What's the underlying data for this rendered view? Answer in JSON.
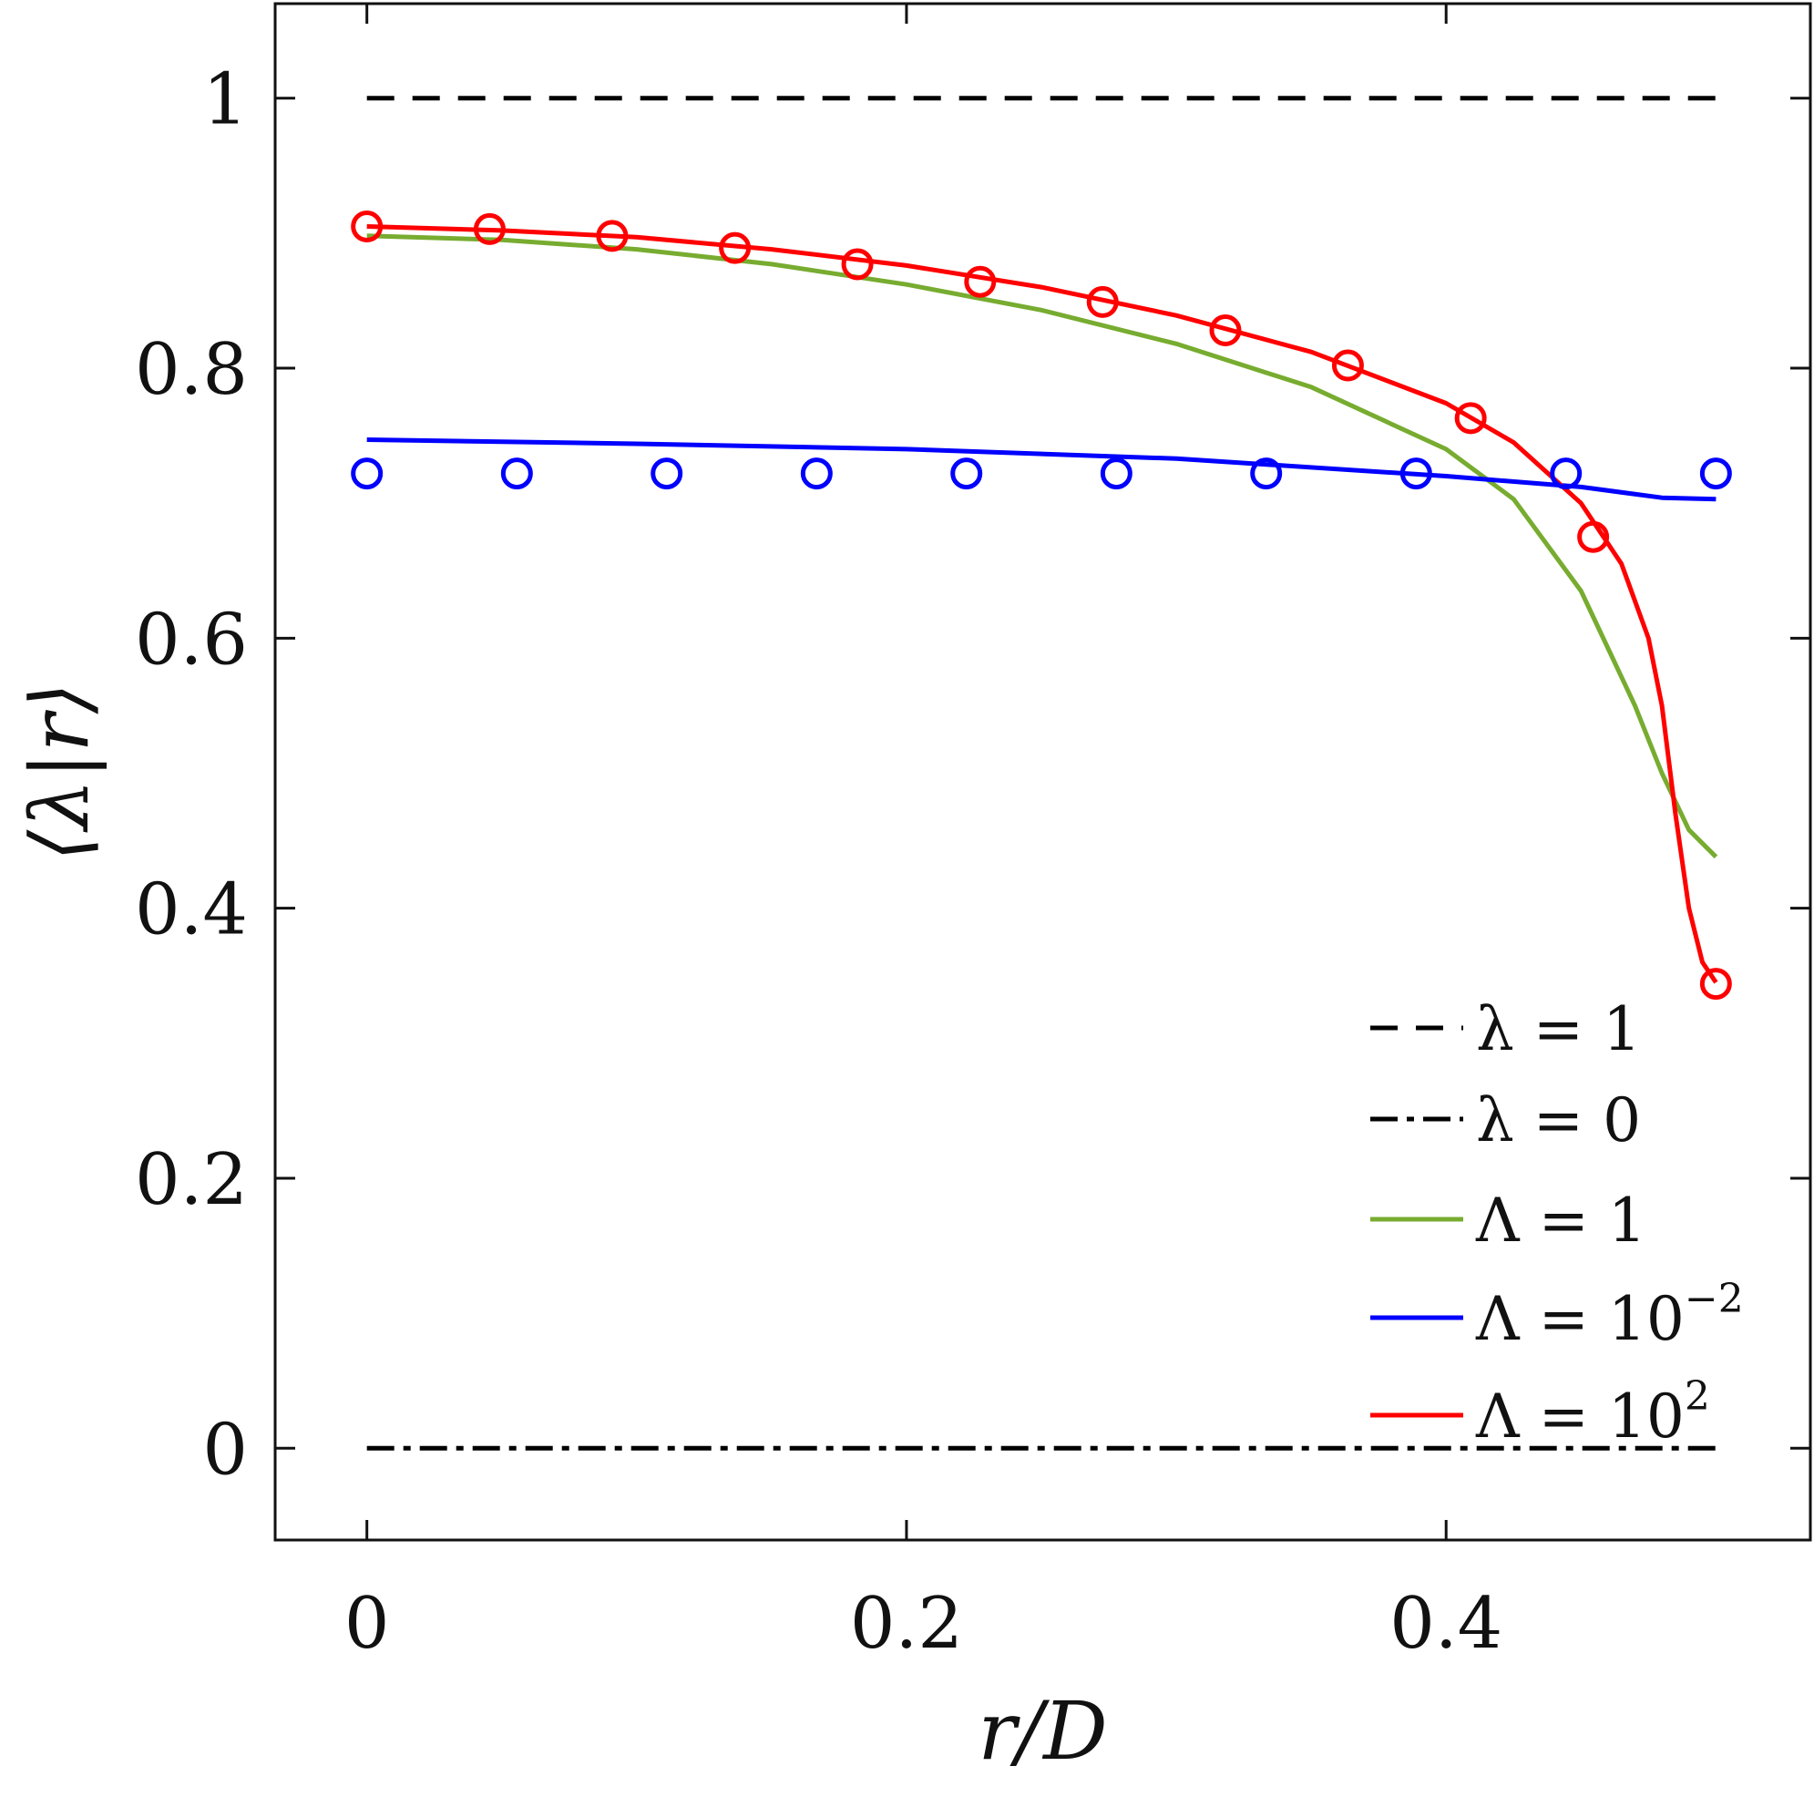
{
  "chart_data": {
    "type": "line",
    "xlabel": "r/D",
    "ylabel": "⟨λ|r⟩",
    "xlim": [
      -0.034,
      0.535
    ],
    "ylim": [
      -0.068,
      1.07
    ],
    "xticks": [
      0,
      0.2,
      0.4
    ],
    "xtick_labels": [
      "0",
      "0.2",
      "0.4"
    ],
    "yticks": [
      0,
      0.2,
      0.4,
      0.6,
      0.8,
      1
    ],
    "ytick_labels": [
      "0",
      "0.2",
      "0.4",
      "0.6",
      "0.8",
      "1"
    ],
    "grid": false,
    "legend_position": "bottom-right",
    "series": [
      {
        "name": "λ = 1",
        "legend_text": "λ = 1",
        "color": "#000000",
        "style": "dashed",
        "x": [
          0,
          0.5
        ],
        "y": [
          1,
          1
        ]
      },
      {
        "name": "λ = 0",
        "legend_text": "λ = 0",
        "color": "#000000",
        "style": "dashdot",
        "x": [
          0,
          0.5
        ],
        "y": [
          0,
          0
        ]
      },
      {
        "name": "Λ = 1",
        "legend_text": "Λ = 1",
        "color": "#77ac30",
        "style": "solid",
        "x": [
          0,
          0.05,
          0.1,
          0.15,
          0.2,
          0.25,
          0.3,
          0.35,
          0.4,
          0.425,
          0.45,
          0.47,
          0.48,
          0.49,
          0.5
        ],
        "y": [
          0.898,
          0.895,
          0.888,
          0.877,
          0.862,
          0.843,
          0.818,
          0.786,
          0.74,
          0.703,
          0.635,
          0.55,
          0.5,
          0.458,
          0.438
        ]
      },
      {
        "name": "Λ = 10^-2",
        "legend_base": "Λ = 10",
        "legend_exp": "−2",
        "color": "#0000ff",
        "style": "solid",
        "x": [
          0,
          0.1,
          0.2,
          0.3,
          0.4,
          0.45,
          0.48,
          0.5
        ],
        "y": [
          0.747,
          0.744,
          0.74,
          0.733,
          0.72,
          0.712,
          0.704,
          0.703
        ]
      },
      {
        "name": "Λ = 10^2",
        "legend_base": "Λ = 10",
        "legend_exp": "2",
        "color": "#ff0000",
        "style": "solid",
        "x": [
          0,
          0.05,
          0.1,
          0.15,
          0.2,
          0.25,
          0.3,
          0.35,
          0.4,
          0.425,
          0.45,
          0.465,
          0.475,
          0.48,
          0.485,
          0.49,
          0.495,
          0.5
        ],
        "y": [
          0.905,
          0.902,
          0.897,
          0.888,
          0.876,
          0.86,
          0.839,
          0.812,
          0.774,
          0.745,
          0.7,
          0.655,
          0.6,
          0.55,
          0.47,
          0.4,
          0.36,
          0.345
        ]
      },
      {
        "name": "Λ = 10^-2 markers",
        "color": "#0000ff",
        "style": "markers",
        "x": [
          0,
          0.0556,
          0.1111,
          0.1667,
          0.2222,
          0.2778,
          0.3333,
          0.3889,
          0.4444,
          0.5
        ],
        "y": [
          0.722,
          0.722,
          0.722,
          0.722,
          0.722,
          0.722,
          0.722,
          0.722,
          0.722,
          0.722
        ]
      },
      {
        "name": "Λ = 10^2 markers",
        "color": "#ff0000",
        "style": "markers",
        "x": [
          0,
          0.0455,
          0.0909,
          0.1364,
          0.1818,
          0.2273,
          0.2727,
          0.3182,
          0.3636,
          0.4091,
          0.4545,
          0.5
        ],
        "y": [
          0.905,
          0.903,
          0.898,
          0.889,
          0.877,
          0.864,
          0.849,
          0.828,
          0.802,
          0.763,
          0.675,
          0.344
        ]
      }
    ],
    "legend": [
      {
        "text": "λ = 1",
        "color": "#000000",
        "style": "dashed"
      },
      {
        "text": "λ = 0",
        "color": "#000000",
        "style": "dashdot"
      },
      {
        "text": "Λ = 1",
        "color": "#77ac30",
        "style": "solid"
      },
      {
        "base": "Λ = 10",
        "exp": "−2",
        "color": "#0000ff",
        "style": "solid"
      },
      {
        "base": "Λ = 10",
        "exp": "2",
        "color": "#ff0000",
        "style": "solid"
      }
    ]
  }
}
